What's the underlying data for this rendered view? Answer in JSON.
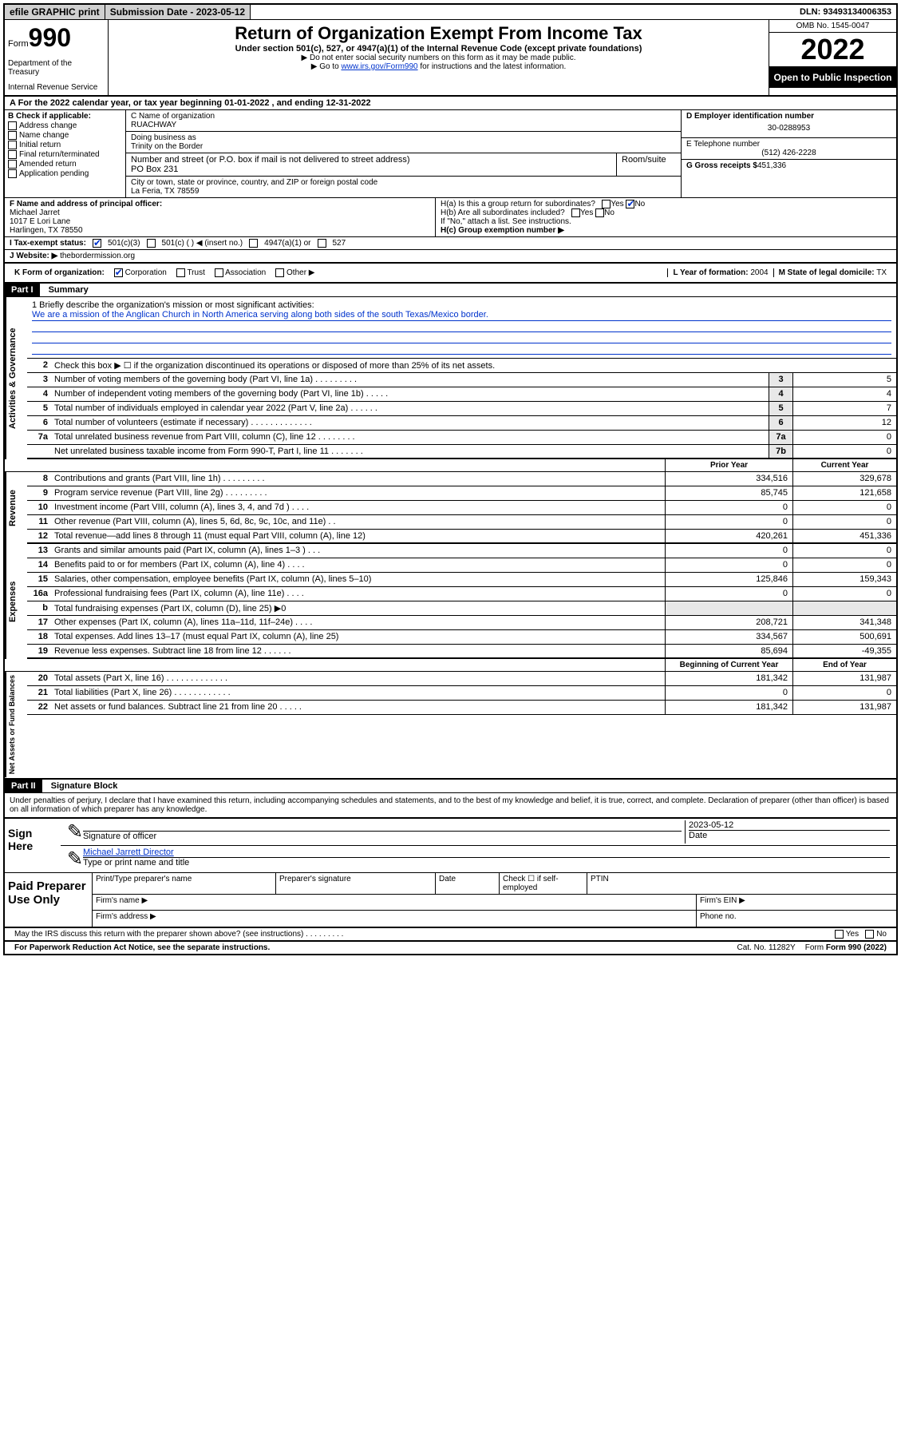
{
  "topbar": {
    "efile": "efile GRAPHIC print",
    "submission": "Submission Date - 2023-05-12",
    "dln": "DLN: 93493134006353"
  },
  "header": {
    "form_label": "Form",
    "form_no": "990",
    "dept": "Department of the Treasury",
    "irs": "Internal Revenue Service",
    "title": "Return of Organization Exempt From Income Tax",
    "sub": "Under section 501(c), 527, or 4947(a)(1) of the Internal Revenue Code (except private foundations)",
    "note1": "▶ Do not enter social security numbers on this form as it may be made public.",
    "note2_pre": "▶ Go to ",
    "note2_link": "www.irs.gov/Form990",
    "note2_post": " for instructions and the latest information.",
    "omb": "OMB No. 1545-0047",
    "year": "2022",
    "inspect": "Open to Public Inspection"
  },
  "row_a": "A For the 2022 calendar year, or tax year beginning 01-01-2022   , and ending 12-31-2022",
  "col_b": {
    "title": "B Check if applicable:",
    "items": [
      "Address change",
      "Name change",
      "Initial return",
      "Final return/terminated",
      "Amended return",
      "Application pending"
    ]
  },
  "col_c": {
    "name_label": "C Name of organization",
    "name": "RUACHWAY",
    "dba_label": "Doing business as",
    "dba": "Trinity on the Border",
    "addr_label": "Number and street (or P.O. box if mail is not delivered to street address)",
    "room_label": "Room/suite",
    "addr": "PO Box 231",
    "city_label": "City or town, state or province, country, and ZIP or foreign postal code",
    "city": "La Feria, TX  78559"
  },
  "col_de": {
    "d_label": "D Employer identification number",
    "ein": "30-0288953",
    "e_label": "E Telephone number",
    "phone": "(512) 426-2228",
    "g_label": "G Gross receipts $",
    "gross": "451,336"
  },
  "row_f": {
    "f_label": "F Name and address of principal officer:",
    "name": "Michael Jarret",
    "addr1": "1017 E Lori Lane",
    "addr2": "Harlingen, TX  78550"
  },
  "row_h": {
    "ha": "H(a)  Is this a group return for subordinates?",
    "hb": "H(b)  Are all subordinates included?",
    "hb_note": "If \"No,\" attach a list. See instructions.",
    "hc": "H(c)  Group exemption number ▶",
    "yes": "Yes",
    "no": "No"
  },
  "row_i": {
    "label": "I  Tax-exempt status:",
    "opt1": "501(c)(3)",
    "opt2": "501(c) (  ) ◀ (insert no.)",
    "opt3": "4947(a)(1) or",
    "opt4": "527"
  },
  "row_j": {
    "label": "J  Website: ▶",
    "val": "thebordermission.org"
  },
  "row_k": {
    "label": "K Form of organization:",
    "corp": "Corporation",
    "trust": "Trust",
    "assoc": "Association",
    "other": "Other ▶",
    "l_label": "L Year of formation:",
    "l_val": "2004",
    "m_label": "M State of legal domicile:",
    "m_val": "TX"
  },
  "parts": {
    "p1": "Part I",
    "p1_title": "Summary",
    "p2": "Part II",
    "p2_title": "Signature Block"
  },
  "mission": {
    "q": "1  Briefly describe the organization's mission or most significant activities:",
    "text": "We are a mission of the Anglican Church in North America serving along both sides of the south Texas/Mexico border."
  },
  "gov_lines": {
    "l2": "Check this box ▶ ☐  if the organization discontinued its operations or disposed of more than 25% of its net assets.",
    "l3": "Number of voting members of the governing body (Part VI, line 1a)   .    .    .    .    .    .    .    .    .",
    "l4": "Number of independent voting members of the governing body (Part VI, line 1b)   .    .    .    .    .",
    "l5": "Total number of individuals employed in calendar year 2022 (Part V, line 2a)   .    .    .    .    .    .",
    "l6": "Total number of volunteers (estimate if necessary)   .    .    .    .    .    .    .    .    .    .    .    .    .",
    "l7a": "Total unrelated business revenue from Part VIII, column (C), line 12   .    .    .    .    .    .    .    .",
    "l7b": "Net unrelated business taxable income from Form 990-T, Part I, line 11   .    .    .    .    .    .    .",
    "v3": "5",
    "v4": "4",
    "v5": "7",
    "v6": "12",
    "v7a": "0",
    "v7b": "0"
  },
  "year_headers": {
    "prior": "Prior Year",
    "current": "Current Year",
    "boy": "Beginning of Current Year",
    "eoy": "End of Year"
  },
  "rev_lines": [
    {
      "n": "8",
      "d": "Contributions and grants (Part VIII, line 1h)   .    .    .    .    .    .    .    .    .",
      "p": "334,516",
      "c": "329,678"
    },
    {
      "n": "9",
      "d": "Program service revenue (Part VIII, line 2g)   .    .    .    .    .    .    .    .    .",
      "p": "85,745",
      "c": "121,658"
    },
    {
      "n": "10",
      "d": "Investment income (Part VIII, column (A), lines 3, 4, and 7d )   .    .    .    .",
      "p": "0",
      "c": "0"
    },
    {
      "n": "11",
      "d": "Other revenue (Part VIII, column (A), lines 5, 6d, 8c, 9c, 10c, and 11e)   .    .",
      "p": "0",
      "c": "0"
    },
    {
      "n": "12",
      "d": "Total revenue—add lines 8 through 11 (must equal Part VIII, column (A), line 12)",
      "p": "420,261",
      "c": "451,336"
    }
  ],
  "exp_lines": [
    {
      "n": "13",
      "d": "Grants and similar amounts paid (Part IX, column (A), lines 1–3 )   .    .    .",
      "p": "0",
      "c": "0"
    },
    {
      "n": "14",
      "d": "Benefits paid to or for members (Part IX, column (A), line 4)   .    .    .    .",
      "p": "0",
      "c": "0"
    },
    {
      "n": "15",
      "d": "Salaries, other compensation, employee benefits (Part IX, column (A), lines 5–10)",
      "p": "125,846",
      "c": "159,343"
    },
    {
      "n": "16a",
      "d": "Professional fundraising fees (Part IX, column (A), line 11e)   .    .    .    .",
      "p": "0",
      "c": "0"
    },
    {
      "n": "b",
      "d": "Total fundraising expenses (Part IX, column (D), line 25) ▶0",
      "p": "",
      "c": ""
    },
    {
      "n": "17",
      "d": "Other expenses (Part IX, column (A), lines 11a–11d, 11f–24e)   .    .    .    .",
      "p": "208,721",
      "c": "341,348"
    },
    {
      "n": "18",
      "d": "Total expenses. Add lines 13–17 (must equal Part IX, column (A), line 25)",
      "p": "334,567",
      "c": "500,691"
    },
    {
      "n": "19",
      "d": "Revenue less expenses. Subtract line 18 from line 12   .    .    .    .    .    .",
      "p": "85,694",
      "c": "-49,355"
    }
  ],
  "net_lines": [
    {
      "n": "20",
      "d": "Total assets (Part X, line 16)   .    .    .    .    .    .    .    .    .    .    .    .    .",
      "p": "181,342",
      "c": "131,987"
    },
    {
      "n": "21",
      "d": "Total liabilities (Part X, line 26)   .    .    .    .    .    .    .    .    .    .    .    .",
      "p": "0",
      "c": "0"
    },
    {
      "n": "22",
      "d": "Net assets or fund balances. Subtract line 21 from line 20   .    .    .    .    .",
      "p": "181,342",
      "c": "131,987"
    }
  ],
  "side_labels": {
    "gov": "Activities & Governance",
    "rev": "Revenue",
    "exp": "Expenses",
    "net": "Net Assets or Fund Balances"
  },
  "sig": {
    "penalty": "Under penalties of perjury, I declare that I have examined this return, including accompanying schedules and statements, and to the best of my knowledge and belief, it is true, correct, and complete. Declaration of preparer (other than officer) is based on all information of which preparer has any knowledge.",
    "sign_here": "Sign Here",
    "sig_officer": "Signature of officer",
    "date_label": "Date",
    "date": "2023-05-12",
    "name": "Michael Jarrett  Director",
    "name_label": "Type or print name and title"
  },
  "paid": {
    "label": "Paid Preparer Use Only",
    "print_name": "Print/Type preparer's name",
    "prep_sig": "Preparer's signature",
    "date": "Date",
    "check": "Check ☐ if self-employed",
    "ptin": "PTIN",
    "firm_name": "Firm's name  ▶",
    "firm_ein": "Firm's EIN ▶",
    "firm_addr": "Firm's address ▶",
    "phone": "Phone no."
  },
  "footer": {
    "discuss": "May the IRS discuss this return with the preparer shown above? (see instructions)   .    .    .    .    .    .    .    .    .",
    "yes": "Yes",
    "no": "No",
    "paperwork": "For Paperwork Reduction Act Notice, see the separate instructions.",
    "cat": "Cat. No. 11282Y",
    "form": "Form 990 (2022)"
  }
}
